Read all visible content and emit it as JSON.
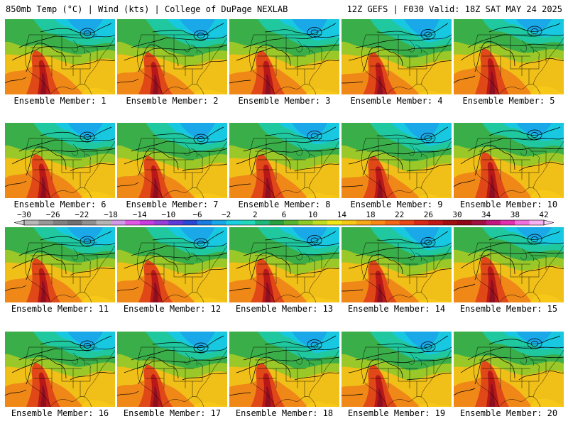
{
  "header": {
    "left": "850mb Temp (°C) | Wind (kts) | College of DuPage NEXLAB",
    "right": "12Z GEFS | F030 Valid: 18Z SAT MAY 24 2025"
  },
  "member_prefix": "Ensemble Member:",
  "members": [
    "1",
    "2",
    "3",
    "4",
    "5",
    "6",
    "7",
    "8",
    "9",
    "10",
    "11",
    "12",
    "13",
    "14",
    "15",
    "16",
    "17",
    "18",
    "19",
    "20"
  ],
  "colorbar": {
    "labels": [
      "−30",
      "−26",
      "−22",
      "−18",
      "−14",
      "−10",
      "−6",
      "−2",
      "2",
      "6",
      "10",
      "14",
      "18",
      "22",
      "26",
      "30",
      "34",
      "38",
      "42"
    ],
    "colors": [
      "#b8b8b8",
      "#989898",
      "#808080",
      "#707070",
      "#909090",
      "#b4b4b4",
      "#d49ae8",
      "#e458e8",
      "#c83ce0",
      "#9640d8",
      "#5e3ad8",
      "#2848d4",
      "#1a7ce0",
      "#18a8e8",
      "#1ad0e0",
      "#22d8b8",
      "#1eb878",
      "#28a040",
      "#56b430",
      "#8cc828",
      "#c0dc20",
      "#f0e818",
      "#f8c818",
      "#f8a818",
      "#f88818",
      "#f06818",
      "#e84818",
      "#d82818",
      "#c01818",
      "#a01010",
      "#900818",
      "#a01040",
      "#c01880",
      "#e030b0",
      "#f070e0",
      "#f8b0f0"
    ]
  }
}
